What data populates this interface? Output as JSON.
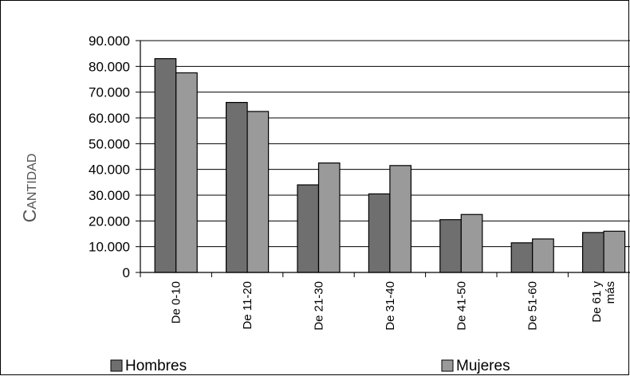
{
  "chart_data": {
    "type": "bar",
    "title": "",
    "xlabel": "",
    "ylabel": "Cantidad",
    "categories": [
      "De 0-10",
      "De 11-20",
      "De 21-30",
      "De 31-40",
      "De 41-50",
      "De 51-60",
      "De 61 y más"
    ],
    "series": [
      {
        "name": "Hombres",
        "color": "#6f6f6f",
        "values": [
          83000,
          66000,
          34000,
          30500,
          20500,
          11500,
          15500
        ]
      },
      {
        "name": "Mujeres",
        "color": "#9a9a9a",
        "values": [
          77500,
          62500,
          42500,
          41500,
          22500,
          13000,
          16000
        ]
      }
    ],
    "ylim": [
      0,
      90000
    ],
    "yticks": [
      0,
      10000,
      20000,
      30000,
      40000,
      50000,
      60000,
      70000,
      80000,
      90000
    ],
    "ytick_labels": [
      "0",
      "10.000",
      "20.000",
      "30.000",
      "40.000",
      "50.000",
      "60.000",
      "70.000",
      "80.000",
      "90.000"
    ],
    "grid": true,
    "legend": "bottom"
  }
}
